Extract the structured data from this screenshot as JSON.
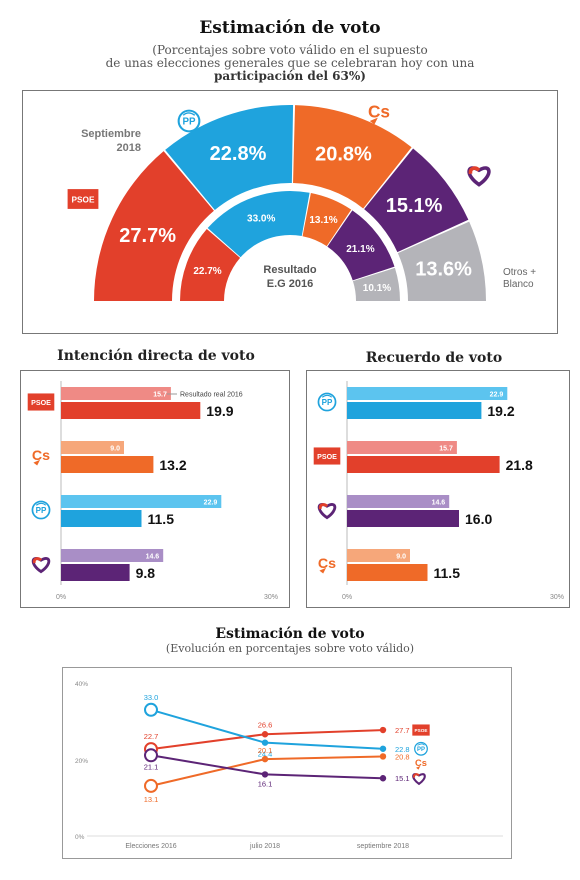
{
  "colors": {
    "psoe": "#e2402b",
    "pp": "#1fa3dd",
    "cs": "#ef6a28",
    "up": "#5c2476",
    "other": "#b4b4b9",
    "psoe_light": "#ef8a85",
    "pp_light": "#5cc4ef",
    "cs_light": "#f6a77a",
    "up_light": "#a98ec6"
  },
  "top": {
    "title": "Estimación de voto",
    "subtitle_line1": "(Porcentajes sobre voto válido en el supuesto",
    "subtitle_line2": "de unas elecciones generales que se celebraran hoy con una",
    "subtitle_line3": "participación del 63%)",
    "label_outer": "Septiembre 2018",
    "label_inner": "Resultado E.G 2016",
    "label_other": "Otros + Blanco"
  },
  "left": {
    "title": "Intención directa de voto",
    "legend": "Resultado real 2016"
  },
  "right": {
    "title": "Recuerdo de voto"
  },
  "line": {
    "title": "Estimación de voto",
    "subtitle": "(Evolución en porcentajes sobre voto válido)"
  },
  "chart_data": [
    {
      "type": "pie",
      "title": "Estimación de voto",
      "series": [
        {
          "name": "Septiembre 2018",
          "categories": [
            "PSOE",
            "PP",
            "Cs",
            "Unidos Podemos",
            "Otros + Blanco"
          ],
          "values": [
            27.7,
            22.8,
            20.8,
            15.1,
            13.6
          ]
        },
        {
          "name": "Resultado E.G 2016",
          "categories": [
            "PSOE",
            "PP",
            "Cs",
            "Unidos Podemos",
            "Otros + Blanco"
          ],
          "values": [
            22.7,
            33.0,
            13.1,
            21.1,
            10.1
          ]
        }
      ]
    },
    {
      "type": "bar",
      "title": "Intención directa de voto",
      "categories": [
        "PSOE",
        "Cs",
        "PP",
        "Unidos Podemos"
      ],
      "series": [
        {
          "name": "Resultado real 2016",
          "values": [
            15.7,
            9.0,
            22.9,
            14.6
          ]
        },
        {
          "values": [
            19.9,
            13.2,
            11.5,
            9.8
          ]
        }
      ],
      "xlim": [
        0,
        30
      ],
      "ticks": [
        "0%",
        "30%"
      ]
    },
    {
      "type": "bar",
      "title": "Recuerdo de voto",
      "categories": [
        "PP",
        "PSOE",
        "Unidos Podemos",
        "Cs"
      ],
      "series": [
        {
          "values": [
            22.9,
            15.7,
            14.6,
            9.0
          ]
        },
        {
          "values": [
            19.2,
            21.8,
            16.0,
            11.5
          ]
        }
      ],
      "xlim": [
        0,
        30
      ],
      "ticks": [
        "0%",
        "30%"
      ]
    },
    {
      "type": "line",
      "title": "Estimación de voto",
      "x": [
        "Elecciones 2016",
        "julio 2018",
        "septiembre 2018"
      ],
      "series": [
        {
          "name": "PSOE",
          "values": [
            22.7,
            26.6,
            27.7
          ]
        },
        {
          "name": "PP",
          "values": [
            33.0,
            24.4,
            22.8
          ]
        },
        {
          "name": "Cs",
          "values": [
            13.1,
            20.1,
            20.8
          ]
        },
        {
          "name": "Unidos Podemos",
          "values": [
            21.1,
            16.1,
            15.1
          ]
        }
      ],
      "ylim": [
        0,
        40
      ],
      "yticks": [
        "40%",
        "20%",
        "0%"
      ]
    }
  ]
}
